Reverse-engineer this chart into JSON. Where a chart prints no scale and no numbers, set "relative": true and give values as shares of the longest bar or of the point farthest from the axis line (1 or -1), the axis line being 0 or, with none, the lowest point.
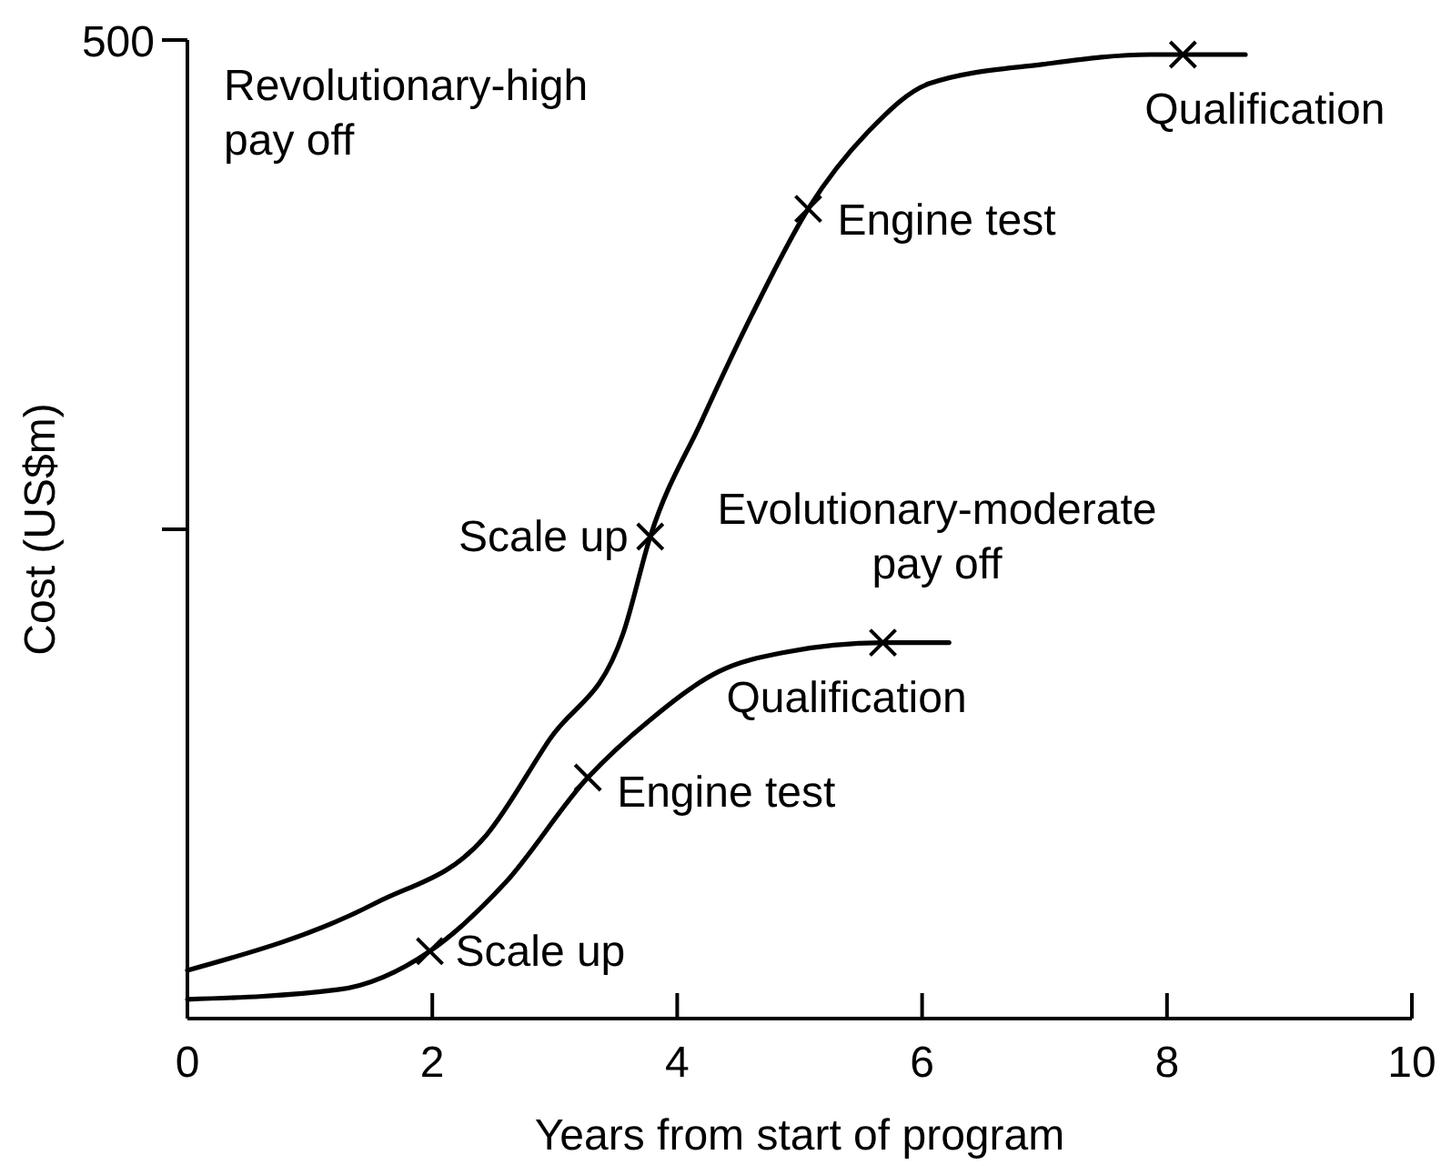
{
  "chart_data": {
    "type": "line",
    "relative": true,
    "xlabel": "Years from start of program",
    "ylabel": "Cost (US$m)",
    "xlim": [
      0,
      10
    ],
    "xticks": [
      0,
      2,
      4,
      6,
      8,
      10
    ],
    "line_style": "solid",
    "series": [
      {
        "color": "#000000",
        "x": [
          0,
          1.54,
          2.44,
          2.96,
          3.56,
          3.78,
          4.2,
          4.61,
          5.07,
          5.56,
          6.06,
          6.99,
          7.86,
          8.13,
          8.25,
          8.64
        ],
        "values": [
          0.05,
          0.12,
          0.19,
          0.29,
          0.4,
          0.5,
          0.62,
          0.73,
          0.84,
          0.92,
          0.97,
          0.99,
          1,
          1,
          1,
          1
        ]
      },
      {
        "color": "#000000",
        "x": [
          0,
          1.23,
          1.98,
          2.59,
          3.27,
          3.78,
          4.34,
          4.88,
          5.68,
          5.9,
          6.22
        ],
        "values": [
          0.02,
          0.03,
          0.07,
          0.14,
          0.25,
          0.31,
          0.36,
          0.38,
          0.39,
          0.39,
          0.39
        ]
      },
      {
        "type": "scatter",
        "marker": "cross",
        "color": "#000000",
        "x": [
          3.78,
          5.07,
          8.13
        ],
        "values": [
          0.5,
          0.84,
          1
        ]
      },
      {
        "type": "scatter",
        "marker": "cross",
        "color": "#000000",
        "x": [
          1.98,
          3.27,
          5.68
        ],
        "values": [
          0.07,
          0.25,
          0.39
        ]
      }
    ],
    "annotations": [
      "500",
      "Revolutionary-high pay off",
      "Evolutionary-moderate pay off",
      {
        "text": "Scale up",
        "x": 3.78,
        "y": 0.5
      },
      {
        "text": "Engine test",
        "x": 5.07,
        "y": 0.84
      },
      {
        "text": "Qualification",
        "x": 8.13,
        "y": 1
      },
      {
        "text": "Scale up",
        "x": 1.98,
        "y": 0.07
      },
      {
        "text": "Engine test",
        "x": 3.27,
        "y": 0.25
      },
      {
        "text": "Qualification",
        "x": 5.68,
        "y": 0.39
      }
    ]
  }
}
